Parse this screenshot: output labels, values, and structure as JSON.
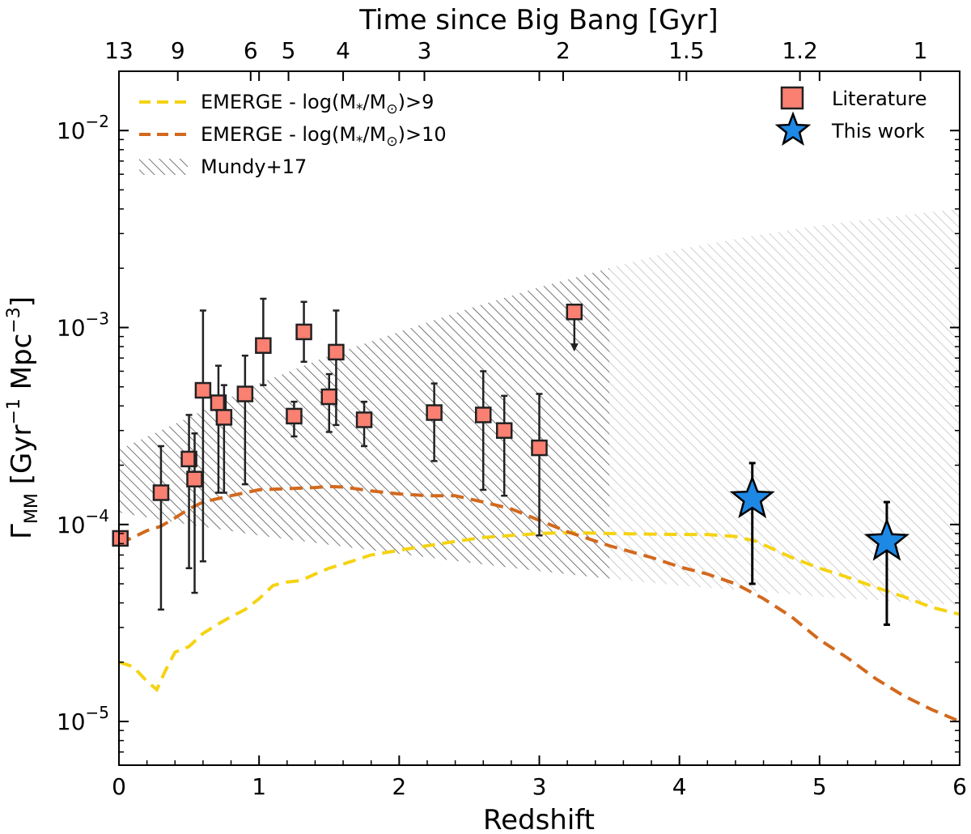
{
  "chart_data": {
    "type": "scatter",
    "xlabel": "Redshift",
    "ylabel_main": "Γ",
    "ylabel_sub": "MM",
    "ylabel_rest": " [Gyr",
    "ylabel_exp1": "−1",
    "ylabel_mid": " Mpc",
    "ylabel_exp2": "−3",
    "ylabel_end": "]",
    "top_xlabel": "Time since Big Bang [Gyr]",
    "xlim": [
      0,
      6
    ],
    "ylim": [
      6e-06,
      0.02
    ],
    "y_scale": "log",
    "x_ticks": [
      {
        "value": 0,
        "label": "0"
      },
      {
        "value": 1,
        "label": "1"
      },
      {
        "value": 2,
        "label": "2"
      },
      {
        "value": 3,
        "label": "3"
      },
      {
        "value": 4,
        "label": "4"
      },
      {
        "value": 5,
        "label": "5"
      },
      {
        "value": 6,
        "label": "6"
      }
    ],
    "y_ticks": [
      {
        "value": 1e-05,
        "base": "10",
        "exp": "−5"
      },
      {
        "value": 0.0001,
        "base": "10",
        "exp": "−4"
      },
      {
        "value": 0.001,
        "base": "10",
        "exp": "−3"
      },
      {
        "value": 0.01,
        "base": "10",
        "exp": "−2"
      }
    ],
    "top_ticks": [
      {
        "z": 0.0,
        "label": "13"
      },
      {
        "z": 0.42,
        "label": "9"
      },
      {
        "z": 0.94,
        "label": "6"
      },
      {
        "z": 1.21,
        "label": "5"
      },
      {
        "z": 1.6,
        "label": "4"
      },
      {
        "z": 2.18,
        "label": "3"
      },
      {
        "z": 3.17,
        "label": "2"
      },
      {
        "z": 4.05,
        "label": "1.5"
      },
      {
        "z": 4.86,
        "label": "1.2"
      },
      {
        "z": 5.72,
        "label": "1"
      }
    ],
    "legend_left": [
      {
        "label_pre": "EMERGE - log(M",
        "label_sub1": "*",
        "label_mid": "/M",
        "label_sub2": "⊙",
        "label_post": ")>9",
        "style": "dash",
        "color": "#f5d313"
      },
      {
        "label_pre": "EMERGE - log(M",
        "label_sub1": "*",
        "label_mid": "/M",
        "label_sub2": "⊙",
        "label_post": ")>10",
        "style": "dash",
        "color": "#d2691e"
      },
      {
        "label": "Mundy+17",
        "style": "hatch",
        "color": "#666666"
      }
    ],
    "legend_right": [
      {
        "label": "Literature",
        "marker": "square",
        "color": "#fa8072"
      },
      {
        "label": "This work",
        "marker": "star",
        "color": "#1e88e5"
      }
    ],
    "series": [
      {
        "name": "EMERGE - log(M*/M⊙)>9",
        "color": "#f5d313",
        "x": [
          0.0,
          0.1,
          0.2,
          0.27,
          0.33,
          0.4,
          0.5,
          0.6,
          0.7,
          0.8,
          0.9,
          1.0,
          1.1,
          1.2,
          1.3,
          1.4,
          1.5,
          1.6,
          1.8,
          2.0,
          2.2,
          2.4,
          2.6,
          2.8,
          3.0,
          3.2,
          3.5,
          4.0,
          4.2,
          4.4,
          4.55,
          4.8,
          5.0,
          5.2,
          5.4,
          5.6,
          5.8,
          6.0
        ],
        "y": [
          2e-05,
          1.9e-05,
          1.6e-05,
          1.45e-05,
          1.8e-05,
          2.25e-05,
          2.4e-05,
          2.8e-05,
          3.1e-05,
          3.4e-05,
          3.7e-05,
          4.2e-05,
          4.9e-05,
          5.1e-05,
          5.2e-05,
          5.6e-05,
          6e-05,
          6.3e-05,
          7e-05,
          7.4e-05,
          7.8e-05,
          8.2e-05,
          8.6e-05,
          8.8e-05,
          9e-05,
          9.1e-05,
          9e-05,
          8.9e-05,
          8.9e-05,
          8.7e-05,
          8.2e-05,
          6.8e-05,
          6e-05,
          5.4e-05,
          4.8e-05,
          4.3e-05,
          3.8e-05,
          3.5e-05
        ]
      },
      {
        "name": "EMERGE - log(M*/M⊙)>10",
        "color": "#d2691e",
        "x": [
          0.0,
          0.1,
          0.2,
          0.3,
          0.4,
          0.5,
          0.6,
          0.7,
          0.8,
          0.9,
          1.0,
          1.2,
          1.4,
          1.5,
          1.6,
          1.8,
          2.0,
          2.2,
          2.4,
          2.6,
          2.8,
          3.0,
          3.2,
          3.5,
          3.8,
          4.0,
          4.2,
          4.4,
          4.6,
          4.8,
          5.0,
          5.2,
          5.4,
          5.6,
          5.8,
          6.0
        ],
        "y": [
          8e-05,
          8.6e-05,
          9.3e-05,
          9.8e-05,
          0.000108,
          0.00012,
          0.00013,
          0.000135,
          0.00014,
          0.000145,
          0.00015,
          0.000152,
          0.000154,
          0.000156,
          0.000155,
          0.000148,
          0.000143,
          0.00014,
          0.00014,
          0.00013,
          0.00012,
          0.000105,
          9.2e-05,
          7.8e-05,
          6.8e-05,
          6.1e-05,
          5.6e-05,
          5e-05,
          4.2e-05,
          3.4e-05,
          2.6e-05,
          2.1e-05,
          1.65e-05,
          1.35e-05,
          1.15e-05,
          1e-05
        ]
      },
      {
        "name": "Mundy+17",
        "type": "band",
        "color": "#666666",
        "x": [
          0.0,
          0.5,
          1.0,
          1.5,
          2.0,
          2.5,
          3.0,
          3.5,
          4.0,
          4.5,
          5.0,
          5.5,
          6.0
        ],
        "y_low": [
          0.000115,
          0.0001,
          8.8e-05,
          7.9e-05,
          7.1e-05,
          6.4e-05,
          5.8e-05,
          5.3e-05,
          4.9e-05,
          4.6e-05,
          4.3e-05,
          4.1e-05,
          3.9e-05
        ],
        "y_high": [
          0.00024,
          0.00035,
          0.00052,
          0.00072,
          0.00095,
          0.00125,
          0.0016,
          0.002,
          0.0025,
          0.0029,
          0.0033,
          0.00365,
          0.004
        ],
        "solid_until": 3.5
      },
      {
        "name": "Literature",
        "marker": "square",
        "color": "#fa8072",
        "points": [
          {
            "x": 0.01,
            "y": 8.5e-05,
            "lo": null,
            "hi": null
          },
          {
            "x": 0.3,
            "y": 0.000145,
            "lo": 3.7e-05,
            "hi": 0.00025
          },
          {
            "x": 0.5,
            "y": 0.000215,
            "lo": 6e-05,
            "hi": 0.00036
          },
          {
            "x": 0.54,
            "y": 0.00017,
            "lo": 4.5e-05,
            "hi": 0.00029
          },
          {
            "x": 0.6,
            "y": 0.00048,
            "lo": 6.5e-05,
            "hi": 0.00122
          },
          {
            "x": 0.71,
            "y": 0.000415,
            "lo": 0.000145,
            "hi": 0.00064
          },
          {
            "x": 0.75,
            "y": 0.00035,
            "lo": 0.000145,
            "hi": 0.00051
          },
          {
            "x": 0.9,
            "y": 0.00046,
            "lo": 0.00016,
            "hi": 0.00072
          },
          {
            "x": 1.03,
            "y": 0.00081,
            "lo": 0.00051,
            "hi": 0.0014
          },
          {
            "x": 1.25,
            "y": 0.000355,
            "lo": 0.00028,
            "hi": 0.00042
          },
          {
            "x": 1.32,
            "y": 0.00095,
            "lo": 0.00067,
            "hi": 0.00135
          },
          {
            "x": 1.5,
            "y": 0.000445,
            "lo": 0.000295,
            "hi": 0.00058
          },
          {
            "x": 1.55,
            "y": 0.00075,
            "lo": 0.00032,
            "hi": 0.00122
          },
          {
            "x": 1.75,
            "y": 0.00034,
            "lo": 0.00025,
            "hi": 0.00042
          },
          {
            "x": 2.25,
            "y": 0.00037,
            "lo": 0.00021,
            "hi": 0.00052
          },
          {
            "x": 2.6,
            "y": 0.00036,
            "lo": 0.00015,
            "hi": 0.0006
          },
          {
            "x": 2.75,
            "y": 0.0003,
            "lo": 0.00014,
            "hi": 0.00045
          },
          {
            "x": 3.0,
            "y": 0.000245,
            "lo": 8.8e-05,
            "hi": 0.00046
          },
          {
            "x": 3.25,
            "y": 0.0012,
            "lo": null,
            "hi": null,
            "upper_limit": true,
            "arrow_to": 0.00077
          }
        ]
      },
      {
        "name": "This work",
        "marker": "star",
        "color": "#1e88e5",
        "points": [
          {
            "x": 4.52,
            "y": 0.000135,
            "lo": 5e-05,
            "hi": 0.000205
          },
          {
            "x": 5.48,
            "y": 8.2e-05,
            "lo": 3.1e-05,
            "hi": 0.00013
          }
        ]
      }
    ]
  }
}
